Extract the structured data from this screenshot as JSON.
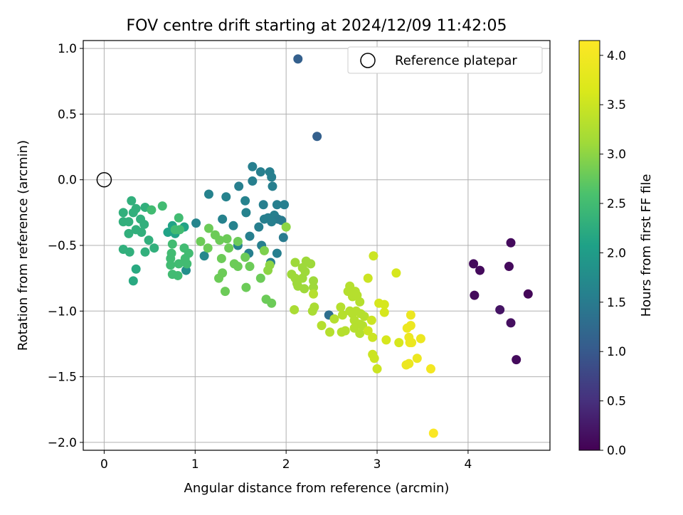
{
  "chart_data": {
    "type": "scatter",
    "title": "FOV centre drift starting at 2024/12/09 11:42:05",
    "xlabel": "Angular distance from reference (arcmin)",
    "ylabel": "Rotation from reference (arcmin)",
    "xlim": [
      -0.23,
      4.9
    ],
    "ylim": [
      -2.06,
      1.06
    ],
    "xticks": [
      0,
      1,
      2,
      3,
      4
    ],
    "xtick_labels": [
      "0",
      "1",
      "2",
      "3",
      "4"
    ],
    "yticks": [
      1.0,
      0.5,
      0.0,
      -0.5,
      -1.0,
      -1.5,
      -2.0
    ],
    "ytick_labels": [
      "1.0",
      "0.5",
      "0.0",
      "−0.5",
      "−1.0",
      "−1.5",
      "−2.0"
    ],
    "grid": true,
    "legend": {
      "position": "top-right",
      "entries": [
        {
          "label": "Reference platepar",
          "marker": "open-circle"
        }
      ]
    },
    "reference_point": {
      "x": 0.0,
      "y": 0.0
    },
    "colorbar": {
      "label": "Hours from first FF file",
      "colormap": "viridis",
      "range": [
        0.0,
        4.15
      ],
      "ticks": [
        0.0,
        0.5,
        1.0,
        1.5,
        2.0,
        2.5,
        3.0,
        3.5,
        4.0
      ],
      "tick_labels": [
        "0.0",
        "0.5",
        "1.0",
        "1.5",
        "2.0",
        "2.5",
        "3.0",
        "3.5",
        "4.0"
      ]
    },
    "points": [
      [
        4.47,
        -0.48,
        0.1
      ],
      [
        4.06,
        -0.64,
        0.1
      ],
      [
        4.13,
        -0.69,
        0.1
      ],
      [
        4.45,
        -0.66,
        0.1
      ],
      [
        4.66,
        -0.87,
        0.05
      ],
      [
        4.07,
        -0.88,
        0.1
      ],
      [
        4.35,
        -0.99,
        0.2
      ],
      [
        4.47,
        -1.09,
        0.15
      ],
      [
        4.53,
        -1.37,
        0.1
      ],
      [
        2.13,
        0.92,
        1.1
      ],
      [
        2.34,
        0.33,
        1.1
      ],
      [
        2.47,
        -1.03,
        1.3
      ],
      [
        1.63,
        0.1,
        1.55
      ],
      [
        1.72,
        0.06,
        1.55
      ],
      [
        1.82,
        0.06,
        1.55
      ],
      [
        1.63,
        -0.01,
        1.55
      ],
      [
        1.84,
        0.02,
        1.55
      ],
      [
        1.85,
        -0.05,
        1.55
      ],
      [
        1.48,
        -0.05,
        1.55
      ],
      [
        1.15,
        -0.11,
        1.6
      ],
      [
        1.34,
        -0.13,
        1.6
      ],
      [
        1.55,
        -0.16,
        1.6
      ],
      [
        1.75,
        -0.19,
        1.55
      ],
      [
        1.9,
        -0.19,
        1.55
      ],
      [
        1.98,
        -0.19,
        1.55
      ],
      [
        1.56,
        -0.25,
        1.6
      ],
      [
        1.76,
        -0.3,
        1.55
      ],
      [
        1.8,
        -0.29,
        1.55
      ],
      [
        1.87,
        -0.27,
        1.55
      ],
      [
        1.91,
        -0.3,
        1.5
      ],
      [
        1.95,
        -0.31,
        1.5
      ],
      [
        1.3,
        -0.3,
        1.6
      ],
      [
        1.01,
        -0.33,
        1.65
      ],
      [
        1.42,
        -0.35,
        1.6
      ],
      [
        1.7,
        -0.36,
        1.55
      ],
      [
        1.84,
        -0.32,
        1.55
      ],
      [
        1.6,
        -0.43,
        1.55
      ],
      [
        1.97,
        -0.44,
        1.5
      ],
      [
        1.47,
        -0.5,
        1.6
      ],
      [
        1.73,
        -0.5,
        1.55
      ],
      [
        1.59,
        -0.56,
        1.55
      ],
      [
        1.9,
        -0.56,
        1.55
      ],
      [
        1.83,
        -0.63,
        1.55
      ],
      [
        1.1,
        -0.58,
        1.7
      ],
      [
        0.9,
        -0.69,
        1.8
      ],
      [
        0.88,
        -0.36,
        2.1
      ],
      [
        0.78,
        -0.41,
        2.1
      ],
      [
        0.75,
        -0.35,
        2.1
      ],
      [
        0.7,
        -0.4,
        2.1
      ],
      [
        0.32,
        -0.77,
        2.2
      ],
      [
        0.35,
        -0.68,
        2.2
      ],
      [
        0.3,
        -0.16,
        2.3
      ],
      [
        0.45,
        -0.21,
        2.3
      ],
      [
        0.35,
        -0.22,
        2.3
      ],
      [
        0.21,
        -0.25,
        2.3
      ],
      [
        0.32,
        -0.25,
        2.3
      ],
      [
        0.4,
        -0.3,
        2.3
      ],
      [
        0.21,
        -0.32,
        2.3
      ],
      [
        0.27,
        -0.32,
        2.3
      ],
      [
        0.44,
        -0.34,
        2.3
      ],
      [
        0.41,
        -0.4,
        2.3
      ],
      [
        0.27,
        -0.41,
        2.3
      ],
      [
        0.35,
        -0.38,
        2.3
      ],
      [
        0.21,
        -0.53,
        2.3
      ],
      [
        0.28,
        -0.55,
        2.3
      ],
      [
        0.45,
        -0.55,
        2.3
      ],
      [
        0.49,
        -0.46,
        2.3
      ],
      [
        0.55,
        -0.52,
        2.3
      ],
      [
        0.52,
        -0.23,
        2.5
      ],
      [
        0.64,
        -0.2,
        2.5
      ],
      [
        0.82,
        -0.29,
        2.5
      ],
      [
        0.78,
        -0.38,
        2.5
      ],
      [
        0.83,
        -0.38,
        2.5
      ],
      [
        0.75,
        -0.49,
        2.5
      ],
      [
        0.88,
        -0.52,
        2.5
      ],
      [
        0.74,
        -0.56,
        2.5
      ],
      [
        0.93,
        -0.56,
        2.5
      ],
      [
        0.89,
        -0.6,
        2.5
      ],
      [
        0.73,
        -0.6,
        2.5
      ],
      [
        0.82,
        -0.64,
        2.5
      ],
      [
        0.91,
        -0.64,
        2.5
      ],
      [
        0.73,
        -0.65,
        2.5
      ],
      [
        0.75,
        -0.72,
        2.5
      ],
      [
        0.81,
        -0.73,
        2.5
      ],
      [
        1.15,
        -0.37,
        2.8
      ],
      [
        1.22,
        -0.42,
        2.8
      ],
      [
        1.06,
        -0.47,
        2.8
      ],
      [
        1.27,
        -0.46,
        2.8
      ],
      [
        1.35,
        -0.45,
        2.8
      ],
      [
        1.14,
        -0.52,
        2.8
      ],
      [
        1.37,
        -0.52,
        2.8
      ],
      [
        1.47,
        -0.47,
        2.8
      ],
      [
        1.55,
        -0.59,
        2.8
      ],
      [
        1.29,
        -0.6,
        2.8
      ],
      [
        1.43,
        -0.64,
        2.8
      ],
      [
        1.47,
        -0.66,
        2.8
      ],
      [
        1.3,
        -0.71,
        2.8
      ],
      [
        1.26,
        -0.75,
        2.8
      ],
      [
        1.56,
        -0.82,
        2.8
      ],
      [
        1.33,
        -0.85,
        2.8
      ],
      [
        1.6,
        -0.66,
        2.8
      ],
      [
        1.72,
        -0.75,
        2.8
      ],
      [
        1.78,
        -0.91,
        2.8
      ],
      [
        1.84,
        -0.94,
        2.8
      ],
      [
        1.76,
        -0.54,
        2.9
      ],
      [
        2.0,
        -0.36,
        3.0
      ],
      [
        2.1,
        -0.63,
        3.1
      ],
      [
        2.22,
        -0.62,
        3.1
      ],
      [
        2.27,
        -0.64,
        3.1
      ],
      [
        2.18,
        -0.67,
        3.1
      ],
      [
        2.21,
        -0.7,
        3.1
      ],
      [
        2.06,
        -0.72,
        3.1
      ],
      [
        2.1,
        -0.75,
        3.1
      ],
      [
        2.18,
        -0.75,
        3.1
      ],
      [
        2.12,
        -0.79,
        3.1
      ],
      [
        2.3,
        -0.77,
        3.1
      ],
      [
        2.13,
        -0.81,
        3.1
      ],
      [
        2.2,
        -0.83,
        3.1
      ],
      [
        2.3,
        -0.82,
        3.1
      ],
      [
        1.82,
        -0.65,
        3.0
      ],
      [
        1.8,
        -0.69,
        3.0
      ],
      [
        2.09,
        -0.99,
        3.2
      ],
      [
        2.29,
        -1.0,
        3.2
      ],
      [
        2.31,
        -0.97,
        3.2
      ],
      [
        2.3,
        -0.87,
        3.3
      ],
      [
        2.39,
        -1.11,
        3.3
      ],
      [
        2.48,
        -1.16,
        3.3
      ],
      [
        2.53,
        -1.06,
        3.3
      ],
      [
        2.6,
        -0.97,
        3.3
      ],
      [
        2.62,
        -1.03,
        3.3
      ],
      [
        2.61,
        -1.16,
        3.3
      ],
      [
        2.65,
        -1.15,
        3.3
      ],
      [
        2.7,
        -0.81,
        3.3
      ],
      [
        2.68,
        -0.85,
        3.3
      ],
      [
        2.76,
        -0.85,
        3.3
      ],
      [
        2.73,
        -0.89,
        3.3
      ],
      [
        2.78,
        -0.88,
        3.3
      ],
      [
        2.81,
        -0.93,
        3.3
      ],
      [
        2.7,
        -1.0,
        3.3
      ],
      [
        2.77,
        -1.0,
        3.3
      ],
      [
        2.73,
        -1.02,
        3.3
      ],
      [
        2.82,
        -1.02,
        3.3
      ],
      [
        2.86,
        -1.04,
        3.3
      ],
      [
        2.75,
        -1.07,
        3.3
      ],
      [
        2.81,
        -1.1,
        3.3
      ],
      [
        2.84,
        -1.11,
        3.3
      ],
      [
        2.75,
        -1.13,
        3.3
      ],
      [
        2.81,
        -1.17,
        3.3
      ],
      [
        2.9,
        -0.75,
        3.5
      ],
      [
        2.96,
        -0.58,
        3.5
      ],
      [
        2.94,
        -1.07,
        3.5
      ],
      [
        2.9,
        -1.15,
        3.5
      ],
      [
        2.95,
        -1.2,
        3.5
      ],
      [
        2.95,
        -1.33,
        3.5
      ],
      [
        2.97,
        -1.36,
        3.5
      ],
      [
        3.0,
        -1.44,
        3.5
      ],
      [
        3.02,
        -0.94,
        3.6
      ],
      [
        3.08,
        -0.95,
        3.6
      ],
      [
        3.08,
        -1.01,
        3.6
      ],
      [
        3.1,
        -1.22,
        3.6
      ],
      [
        3.21,
        -0.71,
        3.6
      ],
      [
        3.24,
        -1.24,
        3.6
      ],
      [
        3.37,
        -1.03,
        3.9
      ],
      [
        3.33,
        -1.13,
        3.9
      ],
      [
        3.37,
        -1.11,
        3.9
      ],
      [
        3.35,
        -1.2,
        3.9
      ],
      [
        3.36,
        -1.24,
        3.9
      ],
      [
        3.48,
        -1.21,
        3.9
      ],
      [
        3.38,
        -1.24,
        3.9
      ],
      [
        3.32,
        -1.41,
        3.9
      ],
      [
        3.35,
        -1.4,
        3.9
      ],
      [
        3.44,
        -1.36,
        3.9
      ],
      [
        3.59,
        -1.44,
        4.0
      ],
      [
        3.62,
        -1.93,
        4.1
      ]
    ]
  }
}
